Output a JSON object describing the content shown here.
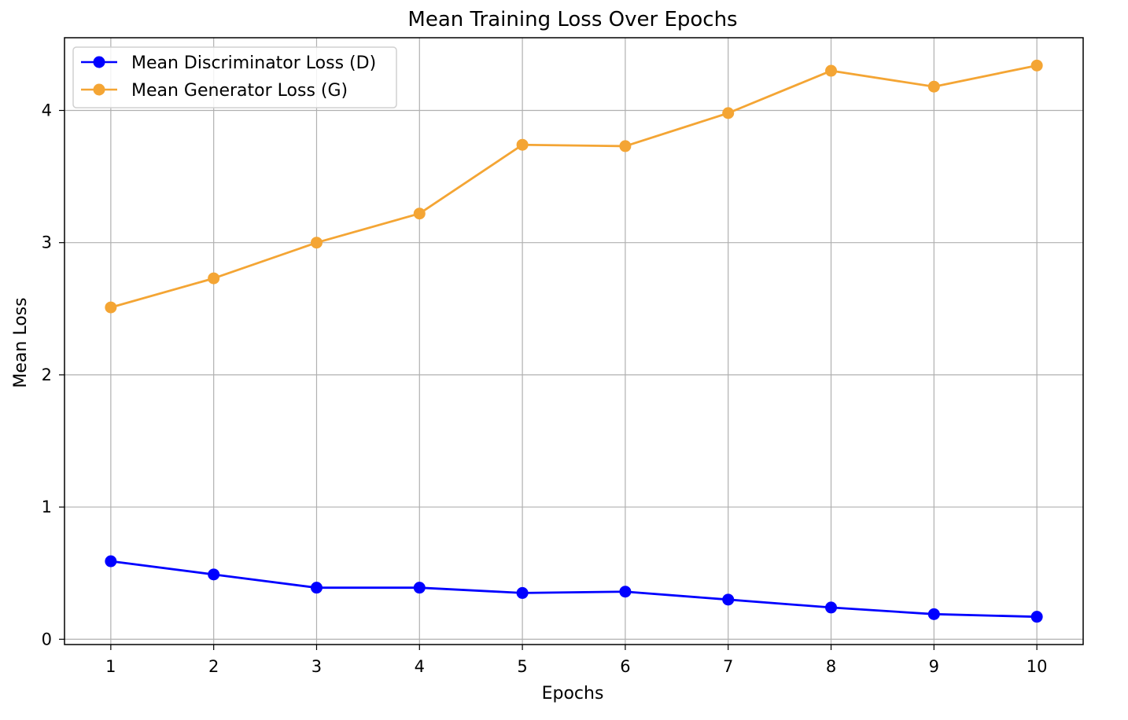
{
  "chart_data": {
    "type": "line",
    "title": "Mean Training Loss Over Epochs",
    "xlabel": "Epochs",
    "ylabel": "Mean Loss",
    "x": [
      1,
      2,
      3,
      4,
      5,
      6,
      7,
      8,
      9,
      10
    ],
    "xticks": [
      "1",
      "2",
      "3",
      "4",
      "5",
      "6",
      "7",
      "8",
      "9",
      "10"
    ],
    "yticks": [
      "0",
      "1",
      "2",
      "3",
      "4"
    ],
    "xlim": [
      0.55,
      10.45
    ],
    "ylim": [
      -0.04,
      4.55
    ],
    "grid": true,
    "legend_position": "top-left",
    "series": [
      {
        "name": "Mean Discriminator Loss (D)",
        "color": "#0000ff",
        "marker": "circle",
        "values": [
          0.59,
          0.49,
          0.39,
          0.39,
          0.35,
          0.36,
          0.3,
          0.24,
          0.19,
          0.17
        ]
      },
      {
        "name": "Mean Generator Loss (G)",
        "color": "#f4a534",
        "marker": "circle",
        "values": [
          2.51,
          2.73,
          3.0,
          3.22,
          3.74,
          3.73,
          3.98,
          4.3,
          4.18,
          4.34
        ]
      }
    ]
  }
}
